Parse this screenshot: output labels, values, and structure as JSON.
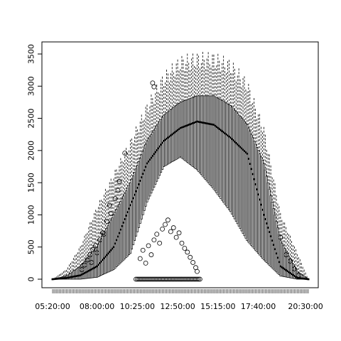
{
  "chart_data": {
    "type": "box",
    "title": "",
    "xlabel": "",
    "ylabel": "",
    "ylim": [
      0,
      3600
    ],
    "yticks": [
      0,
      500,
      1000,
      1500,
      2000,
      2500,
      3000,
      3500
    ],
    "ytick_labels": [
      "0",
      "500",
      "1000",
      "1500",
      "2000",
      "2500",
      "3000",
      "3500"
    ],
    "xticks": [
      "05:20:00",
      "08:00:00",
      "10:25:00",
      "12:50:00",
      "15:15:00",
      "17:40:00",
      "20:30:00"
    ],
    "x_range": [
      "05:20:00",
      "20:40:00"
    ],
    "interval_minutes": 5,
    "grid": false,
    "legend": "none",
    "key_points": [
      {
        "time": "05:20:00",
        "q1": 0,
        "median": 0,
        "q3": 0,
        "whisker_high": 0
      },
      {
        "time": "06:10:00",
        "q1": 0,
        "median": 20,
        "q3": 50,
        "whisker_high": 150
      },
      {
        "time": "07:00:00",
        "q1": 0,
        "median": 60,
        "q3": 200,
        "whisker_high": 500
      },
      {
        "time": "08:00:00",
        "q1": 30,
        "median": 200,
        "q3": 500,
        "whisker_high": 1100
      },
      {
        "time": "09:00:00",
        "q1": 150,
        "median": 500,
        "q3": 1000,
        "whisker_high": 1600
      },
      {
        "time": "10:00:00",
        "q1": 400,
        "median": 1150,
        "q3": 1500,
        "whisker_high": 2100
      },
      {
        "time": "11:00:00",
        "q1": 1200,
        "median": 1800,
        "q3": 2150,
        "whisker_high": 2650
      },
      {
        "time": "12:00:00",
        "q1": 1750,
        "median": 2150,
        "q3": 2550,
        "whisker_high": 3100
      },
      {
        "time": "13:00:00",
        "q1": 1900,
        "median": 2350,
        "q3": 2750,
        "whisker_high": 3350
      },
      {
        "time": "14:00:00",
        "q1": 1700,
        "median": 2450,
        "q3": 2850,
        "whisker_high": 3400
      },
      {
        "time": "15:00:00",
        "q1": 1400,
        "median": 2400,
        "q3": 2850,
        "whisker_high": 3400
      },
      {
        "time": "16:00:00",
        "q1": 1050,
        "median": 2200,
        "q3": 2700,
        "whisker_high": 3300
      },
      {
        "time": "17:00:00",
        "q1": 600,
        "median": 1950,
        "q3": 2400,
        "whisker_high": 3000
      },
      {
        "time": "18:00:00",
        "q1": 300,
        "median": 1000,
        "q3": 1800,
        "whisker_high": 2300
      },
      {
        "time": "19:00:00",
        "q1": 50,
        "median": 200,
        "q3": 600,
        "whisker_high": 1000
      },
      {
        "time": "20:00:00",
        "q1": 0,
        "median": 20,
        "q3": 120,
        "whisker_high": 400
      },
      {
        "time": "20:40:00",
        "q1": 0,
        "median": 0,
        "q3": 0,
        "whisker_high": 0
      }
    ],
    "outliers": {
      "morning": [
        {
          "time": "07:15:00",
          "y": 220
        },
        {
          "time": "07:25:00",
          "y": 300
        },
        {
          "time": "07:35:00",
          "y": 380
        },
        {
          "time": "07:45:00",
          "y": 460
        },
        {
          "time": "07:55:00",
          "y": 520
        },
        {
          "time": "08:10:00",
          "y": 610
        },
        {
          "time": "08:20:00",
          "y": 720
        },
        {
          "time": "08:35:00",
          "y": 900
        },
        {
          "time": "08:45:00",
          "y": 1150
        },
        {
          "time": "08:50:00",
          "y": 1020
        },
        {
          "time": "09:05:00",
          "y": 1250
        },
        {
          "time": "09:15:00",
          "y": 1380
        },
        {
          "time": "09:20:00",
          "y": 1520
        },
        {
          "time": "09:40:00",
          "y": 1960
        },
        {
          "time": "07:05:00",
          "y": 150
        },
        {
          "time": "07:40:00",
          "y": 260
        },
        {
          "time": "08:00:00",
          "y": 410
        },
        {
          "time": "08:25:00",
          "y": 700
        }
      ],
      "midday_low": [
        {
          "time": "10:35:00",
          "y": 320
        },
        {
          "time": "10:45:00",
          "y": 450
        },
        {
          "time": "10:55:00",
          "y": 250
        },
        {
          "time": "11:05:00",
          "y": 520
        },
        {
          "time": "11:15:00",
          "y": 380
        },
        {
          "time": "11:25:00",
          "y": 610
        },
        {
          "time": "11:35:00",
          "y": 700
        },
        {
          "time": "11:45:00",
          "y": 560
        },
        {
          "time": "11:55:00",
          "y": 780
        },
        {
          "time": "12:05:00",
          "y": 850
        },
        {
          "time": "12:15:00",
          "y": 920
        },
        {
          "time": "12:25:00",
          "y": 740
        },
        {
          "time": "12:35:00",
          "y": 800
        },
        {
          "time": "12:45:00",
          "y": 650
        },
        {
          "time": "12:55:00",
          "y": 720
        },
        {
          "time": "13:05:00",
          "y": 560
        },
        {
          "time": "13:15:00",
          "y": 480
        },
        {
          "time": "13:25:00",
          "y": 420
        },
        {
          "time": "13:35:00",
          "y": 340
        },
        {
          "time": "13:45:00",
          "y": 260
        },
        {
          "time": "13:55:00",
          "y": 180
        },
        {
          "time": "14:00:00",
          "y": 120
        },
        {
          "time": "11:20:00",
          "y": 3050
        },
        {
          "time": "11:25:00",
          "y": 2990
        }
      ],
      "evening": [
        {
          "time": "19:00:00",
          "y": 650
        },
        {
          "time": "19:20:00",
          "y": 380
        },
        {
          "time": "19:35:00",
          "y": 280
        },
        {
          "time": "19:50:00",
          "y": 160
        },
        {
          "time": "20:05:00",
          "y": 60
        }
      ]
    }
  }
}
